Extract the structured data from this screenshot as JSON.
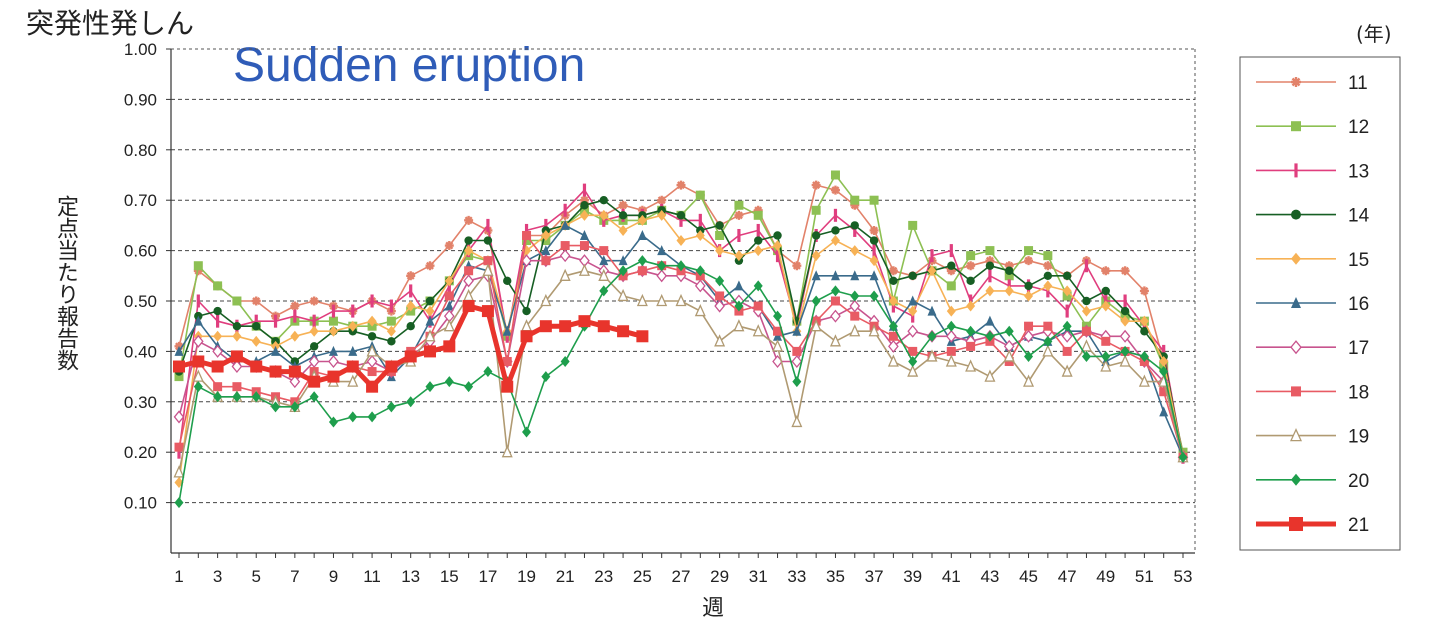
{
  "chart_data": {
    "type": "line",
    "title": "突発性発しん",
    "subtitle": "Sudden eruption",
    "ylabel": "定点当たり報告数",
    "xlabel": "週",
    "legend_title": "(年)",
    "ylim": [
      0,
      1.0
    ],
    "xlim": [
      1,
      53
    ],
    "y_ticks": [
      "0.10",
      "0.20",
      "0.30",
      "0.40",
      "0.50",
      "0.60",
      "0.70",
      "0.80",
      "0.90",
      "1.00"
    ],
    "x_ticks": [
      "1",
      "3",
      "5",
      "7",
      "9",
      "11",
      "13",
      "15",
      "17",
      "19",
      "21",
      "23",
      "25",
      "27",
      "29",
      "31",
      "33",
      "35",
      "37",
      "39",
      "41",
      "43",
      "45",
      "47",
      "49",
      "51",
      "53"
    ],
    "grid": "horizontal dashed",
    "legend_position": "right",
    "series": [
      {
        "name": "11",
        "color": "#e2826a",
        "marker": "asterisk",
        "values": [
          0.41,
          0.56,
          0.53,
          0.5,
          0.5,
          0.47,
          0.49,
          0.5,
          0.49,
          0.48,
          0.5,
          0.48,
          0.55,
          0.57,
          0.61,
          0.66,
          0.64,
          0.43,
          0.63,
          0.63,
          0.67,
          0.7,
          0.67,
          0.69,
          0.68,
          0.7,
          0.73,
          0.71,
          0.65,
          0.67,
          0.68,
          0.6,
          0.57,
          0.73,
          0.72,
          0.69,
          0.64,
          0.56,
          0.55,
          0.58,
          0.56,
          0.57,
          0.58,
          0.57,
          0.58,
          0.57,
          0.55,
          0.58,
          0.56,
          0.56,
          0.52,
          0.38,
          0.19
        ]
      },
      {
        "name": "12",
        "color": "#8dc053",
        "marker": "square",
        "values": [
          0.35,
          0.57,
          0.53,
          0.5,
          0.45,
          0.42,
          0.46,
          0.46,
          0.46,
          0.45,
          0.45,
          0.46,
          0.48,
          0.5,
          0.54,
          0.59,
          0.58,
          0.43,
          0.62,
          0.62,
          0.65,
          0.68,
          0.66,
          0.66,
          0.66,
          0.68,
          0.67,
          0.71,
          0.63,
          0.69,
          0.67,
          0.6,
          0.46,
          0.68,
          0.75,
          0.7,
          0.7,
          0.5,
          0.65,
          0.56,
          0.53,
          0.59,
          0.6,
          0.55,
          0.6,
          0.59,
          0.51,
          0.45,
          0.5,
          0.47,
          0.46,
          0.37,
          0.2
        ]
      },
      {
        "name": "13",
        "color": "#e03e7e",
        "marker": "bar",
        "values": [
          0.2,
          0.5,
          0.46,
          0.45,
          0.46,
          0.46,
          0.47,
          0.46,
          0.48,
          0.48,
          0.5,
          0.49,
          0.52,
          0.46,
          0.53,
          0.6,
          0.65,
          0.43,
          0.64,
          0.65,
          0.68,
          0.72,
          0.66,
          0.67,
          0.67,
          0.68,
          0.66,
          0.66,
          0.6,
          0.63,
          0.64,
          0.59,
          0.45,
          0.63,
          0.67,
          0.64,
          0.6,
          0.49,
          0.47,
          0.59,
          0.6,
          0.5,
          0.55,
          0.53,
          0.53,
          0.52,
          0.48,
          0.57,
          0.5,
          0.5,
          0.45,
          0.4,
          0.19
        ]
      },
      {
        "name": "14",
        "color": "#175f24",
        "marker": "circle",
        "values": [
          0.36,
          0.47,
          0.48,
          0.45,
          0.45,
          0.42,
          0.38,
          0.41,
          0.44,
          0.44,
          0.43,
          0.42,
          0.45,
          0.5,
          0.54,
          0.62,
          0.62,
          0.54,
          0.48,
          0.64,
          0.65,
          0.69,
          0.7,
          0.67,
          0.67,
          0.68,
          0.67,
          0.64,
          0.65,
          0.58,
          0.62,
          0.63,
          0.46,
          0.63,
          0.64,
          0.65,
          0.62,
          0.54,
          0.55,
          0.56,
          0.57,
          0.54,
          0.57,
          0.56,
          0.53,
          0.55,
          0.55,
          0.5,
          0.52,
          0.48,
          0.44,
          0.39,
          0.19
        ]
      },
      {
        "name": "15",
        "color": "#f7b256",
        "marker": "diamond",
        "values": [
          0.14,
          0.43,
          0.43,
          0.43,
          0.42,
          0.41,
          0.43,
          0.44,
          0.44,
          0.45,
          0.46,
          0.44,
          0.49,
          0.48,
          0.54,
          0.6,
          0.58,
          0.44,
          0.6,
          0.63,
          0.65,
          0.67,
          0.67,
          0.64,
          0.66,
          0.67,
          0.62,
          0.63,
          0.6,
          0.59,
          0.6,
          0.61,
          0.44,
          0.59,
          0.62,
          0.6,
          0.58,
          0.5,
          0.48,
          0.56,
          0.48,
          0.49,
          0.52,
          0.52,
          0.51,
          0.53,
          0.52,
          0.48,
          0.49,
          0.46,
          0.46,
          0.38,
          0.19
        ]
      },
      {
        "name": "16",
        "color": "#3a6b8b",
        "marker": "triangle",
        "values": [
          0.4,
          0.46,
          0.41,
          0.38,
          0.38,
          0.4,
          0.37,
          0.39,
          0.4,
          0.4,
          0.41,
          0.35,
          0.39,
          0.46,
          0.49,
          0.57,
          0.56,
          0.44,
          0.58,
          0.6,
          0.65,
          0.63,
          0.58,
          0.58,
          0.63,
          0.6,
          0.57,
          0.55,
          0.5,
          0.53,
          0.49,
          0.43,
          0.44,
          0.55,
          0.55,
          0.55,
          0.55,
          0.45,
          0.5,
          0.48,
          0.42,
          0.43,
          0.46,
          0.41,
          0.43,
          0.42,
          0.44,
          0.44,
          0.38,
          0.4,
          0.39,
          0.28,
          0.19
        ]
      },
      {
        "name": "17",
        "color": "#c8548e",
        "marker": "diamond-open",
        "values": [
          0.27,
          0.42,
          0.4,
          0.37,
          0.37,
          0.36,
          0.34,
          0.38,
          0.38,
          0.37,
          0.38,
          0.36,
          0.39,
          0.42,
          0.47,
          0.54,
          0.55,
          0.38,
          0.58,
          0.58,
          0.59,
          0.58,
          0.56,
          0.55,
          0.56,
          0.55,
          0.55,
          0.53,
          0.49,
          0.5,
          0.48,
          0.38,
          0.38,
          0.46,
          0.47,
          0.49,
          0.46,
          0.41,
          0.44,
          0.43,
          0.43,
          0.42,
          0.43,
          0.41,
          0.43,
          0.44,
          0.43,
          0.44,
          0.43,
          0.43,
          0.38,
          0.34,
          0.19
        ]
      },
      {
        "name": "18",
        "color": "#e85b64",
        "marker": "square",
        "values": [
          0.21,
          0.38,
          0.33,
          0.33,
          0.32,
          0.31,
          0.3,
          0.36,
          0.35,
          0.37,
          0.36,
          0.36,
          0.4,
          0.43,
          0.51,
          0.56,
          0.58,
          0.38,
          0.63,
          0.58,
          0.61,
          0.61,
          0.6,
          0.55,
          0.56,
          0.57,
          0.56,
          0.55,
          0.51,
          0.48,
          0.49,
          0.44,
          0.4,
          0.46,
          0.5,
          0.47,
          0.45,
          0.43,
          0.4,
          0.39,
          0.4,
          0.41,
          0.42,
          0.38,
          0.45,
          0.45,
          0.4,
          0.44,
          0.42,
          0.4,
          0.38,
          0.32,
          0.19
        ]
      },
      {
        "name": "19",
        "color": "#b09a72",
        "marker": "triangle-open",
        "values": [
          0.16,
          0.35,
          0.31,
          0.31,
          0.31,
          0.3,
          0.29,
          0.35,
          0.34,
          0.34,
          0.4,
          0.37,
          0.38,
          0.43,
          0.45,
          0.51,
          0.56,
          0.2,
          0.45,
          0.5,
          0.55,
          0.56,
          0.55,
          0.51,
          0.5,
          0.5,
          0.5,
          0.48,
          0.42,
          0.45,
          0.44,
          0.41,
          0.26,
          0.45,
          0.42,
          0.44,
          0.44,
          0.38,
          0.36,
          0.39,
          0.38,
          0.37,
          0.35,
          0.39,
          0.34,
          0.4,
          0.36,
          0.41,
          0.37,
          0.38,
          0.34,
          0.34,
          0.19
        ]
      },
      {
        "name": "20",
        "color": "#1e9e4c",
        "marker": "diamond",
        "values": [
          0.1,
          0.33,
          0.31,
          0.31,
          0.31,
          0.29,
          0.29,
          0.31,
          0.26,
          0.27,
          0.27,
          0.29,
          0.3,
          0.33,
          0.34,
          0.33,
          0.36,
          0.34,
          0.24,
          0.35,
          0.38,
          0.45,
          0.52,
          0.56,
          0.58,
          0.57,
          0.57,
          0.56,
          0.54,
          0.49,
          0.53,
          0.47,
          0.34,
          0.5,
          0.52,
          0.51,
          0.51,
          0.45,
          0.38,
          0.43,
          0.45,
          0.44,
          0.43,
          0.44,
          0.39,
          0.42,
          0.45,
          0.39,
          0.39,
          0.4,
          0.39,
          0.36,
          0.19
        ]
      },
      {
        "name": "21",
        "color": "#e8342c",
        "marker": "square",
        "bold": true,
        "values": [
          0.37,
          0.38,
          0.37,
          0.39,
          0.37,
          0.36,
          0.36,
          0.34,
          0.35,
          0.37,
          0.33,
          0.37,
          0.39,
          0.4,
          0.41,
          0.49,
          0.48,
          0.33,
          0.43,
          0.45,
          0.45,
          0.46,
          0.45,
          0.44,
          0.43,
          null,
          null,
          null,
          null,
          null,
          null,
          null,
          null,
          null,
          null,
          null,
          null,
          null,
          null,
          null,
          null,
          null,
          null,
          null,
          null,
          null,
          null,
          null,
          null,
          null,
          null,
          null,
          null
        ]
      }
    ]
  }
}
